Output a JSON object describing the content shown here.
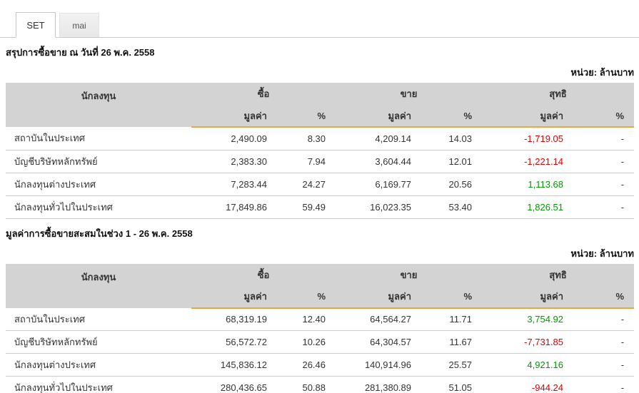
{
  "tabs": [
    {
      "label": "SET",
      "active": true
    },
    {
      "label": "mai",
      "active": false
    }
  ],
  "unit_label": "หน่วย: ล้านบาท",
  "columns": {
    "investor": "นักลงทุน",
    "buy": "ซื้อ",
    "sell": "ขาย",
    "net": "สุทธิ",
    "value": "มูลค่า",
    "percent": "%"
  },
  "colors": {
    "accent_underline": "#efa53b",
    "header_bg": "#d3d3d3",
    "positive": "#009900",
    "negative": "#e00000"
  },
  "sections": [
    {
      "title": "สรุปการซื้อขาย ณ วันที่ 26 พ.ค. 2558",
      "rows": [
        {
          "investor": "สถาบันในประเทศ",
          "buy_value": "2,490.09",
          "buy_pct": "8.30",
          "sell_value": "4,209.14",
          "sell_pct": "14.03",
          "net_value": "-1,719.05",
          "net_pct": "-"
        },
        {
          "investor": "บัญชีบริษัทหลักทรัพย์",
          "buy_value": "2,383.30",
          "buy_pct": "7.94",
          "sell_value": "3,604.44",
          "sell_pct": "12.01",
          "net_value": "-1,221.14",
          "net_pct": "-"
        },
        {
          "investor": "นักลงทุนต่างประเทศ",
          "buy_value": "7,283.44",
          "buy_pct": "24.27",
          "sell_value": "6,169.77",
          "sell_pct": "20.56",
          "net_value": "1,113.68",
          "net_pct": "-"
        },
        {
          "investor": "นักลงทุนทั่วไปในประเทศ",
          "buy_value": "17,849.86",
          "buy_pct": "59.49",
          "sell_value": "16,023.35",
          "sell_pct": "53.40",
          "net_value": "1,826.51",
          "net_pct": "-"
        }
      ]
    },
    {
      "title": "มูลค่าการซื้อขายสะสมในช่วง 1 - 26 พ.ค. 2558",
      "rows": [
        {
          "investor": "สถาบันในประเทศ",
          "buy_value": "68,319.19",
          "buy_pct": "12.40",
          "sell_value": "64,564.27",
          "sell_pct": "11.71",
          "net_value": "3,754.92",
          "net_pct": "-"
        },
        {
          "investor": "บัญชีบริษัทหลักทรัพย์",
          "buy_value": "56,572.72",
          "buy_pct": "10.26",
          "sell_value": "64,304.57",
          "sell_pct": "11.67",
          "net_value": "-7,731.85",
          "net_pct": "-"
        },
        {
          "investor": "นักลงทุนต่างประเทศ",
          "buy_value": "145,836.12",
          "buy_pct": "26.46",
          "sell_value": "140,914.96",
          "sell_pct": "25.57",
          "net_value": "4,921.16",
          "net_pct": "-"
        },
        {
          "investor": "นักลงทุนทั่วไปในประเทศ",
          "buy_value": "280,436.65",
          "buy_pct": "50.88",
          "sell_value": "281,380.89",
          "sell_pct": "51.05",
          "net_value": "-944.24",
          "net_pct": "-"
        }
      ]
    }
  ]
}
